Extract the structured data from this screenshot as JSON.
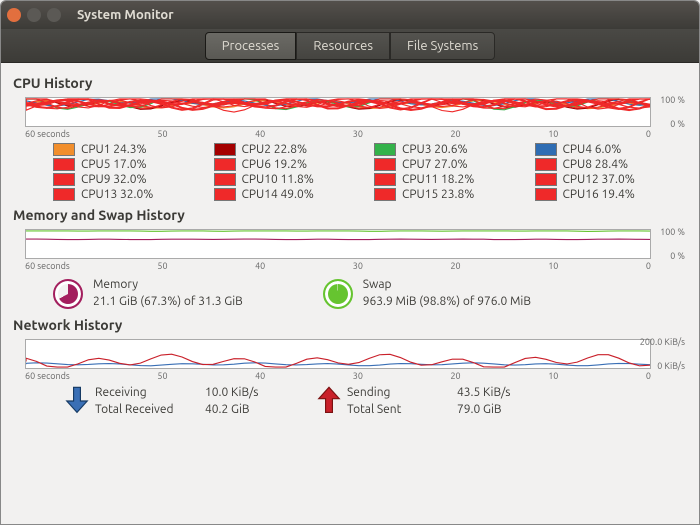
{
  "window": {
    "title": "System Monitor"
  },
  "tabs": [
    {
      "label": "Processes",
      "active": true
    },
    {
      "label": "Resources",
      "active": false
    },
    {
      "label": "File Systems",
      "active": false
    }
  ],
  "sections": {
    "cpu_title": "CPU History",
    "mem_title": "Memory and Swap History",
    "net_title": "Network History"
  },
  "xaxis": [
    "60 seconds",
    "50",
    "40",
    "30",
    "20",
    "10",
    "0"
  ],
  "chart_ylabels": {
    "top": "100 %",
    "bot": "0 %"
  },
  "cpu_chart": {
    "bg": "#ffffff",
    "border": "#a8a8a8",
    "colors": [
      "#f18e2c",
      "#c9202a",
      "#ef2929",
      "#34b24a",
      "#2f6db3",
      "#ef2929",
      "#ef2929",
      "#ef2929"
    ]
  },
  "cpus": [
    {
      "name": "CPU1",
      "pct": "24.3%",
      "color": "#f18e2c"
    },
    {
      "name": "CPU2",
      "pct": "22.8%",
      "color": "#a40000"
    },
    {
      "name": "CPU3",
      "pct": "20.6%",
      "color": "#34b24a"
    },
    {
      "name": "CPU4",
      "pct": "6.0%",
      "color": "#2f6db3"
    },
    {
      "name": "CPU5",
      "pct": "17.0%",
      "color": "#ef2929"
    },
    {
      "name": "CPU6",
      "pct": "19.2%",
      "color": "#ef2929"
    },
    {
      "name": "CPU7",
      "pct": "27.0%",
      "color": "#ef2929"
    },
    {
      "name": "CPU8",
      "pct": "28.4%",
      "color": "#ef2929"
    },
    {
      "name": "CPU9",
      "pct": "32.0%",
      "color": "#ef2929"
    },
    {
      "name": "CPU10",
      "pct": "11.8%",
      "color": "#ef2929"
    },
    {
      "name": "CPU11",
      "pct": "18.2%",
      "color": "#ef2929"
    },
    {
      "name": "CPU12",
      "pct": "37.0%",
      "color": "#ef2929"
    },
    {
      "name": "CPU13",
      "pct": "32.0%",
      "color": "#ef2929"
    },
    {
      "name": "CPU14",
      "pct": "49.0%",
      "color": "#ef2929"
    },
    {
      "name": "CPU15",
      "pct": "23.8%",
      "color": "#ef2929"
    },
    {
      "name": "CPU16",
      "pct": "19.4%",
      "color": "#ef2929"
    }
  ],
  "mem_chart": {
    "top": "100 %",
    "bot": "0 %",
    "mem_color": "#a31f5e",
    "swap_color": "#66c430"
  },
  "memory": {
    "label": "Memory",
    "detail": "21.1 GiB (67.3%) of 31.3 GiB",
    "pct": 67.3,
    "color": "#a31f5e"
  },
  "swap": {
    "label": "Swap",
    "detail": "963.9 MiB (98.8%) of 976.0 MiB",
    "pct": 98.8,
    "color": "#66c430"
  },
  "net_chart": {
    "top": "200.0 KiB/s",
    "bot": "0 KiB/s",
    "recv_color": "#3a6fb5",
    "send_color": "#c9202a"
  },
  "network": {
    "recv": {
      "label": "Receiving",
      "rate": "10.0 KiB/s",
      "total_label": "Total Received",
      "total": "40.2 GiB",
      "arrow_color": "#3a6fb5"
    },
    "send": {
      "label": "Sending",
      "rate": "43.5 KiB/s",
      "total_label": "Total Sent",
      "total": "79.0 GiB",
      "arrow_color": "#c9202a"
    }
  }
}
